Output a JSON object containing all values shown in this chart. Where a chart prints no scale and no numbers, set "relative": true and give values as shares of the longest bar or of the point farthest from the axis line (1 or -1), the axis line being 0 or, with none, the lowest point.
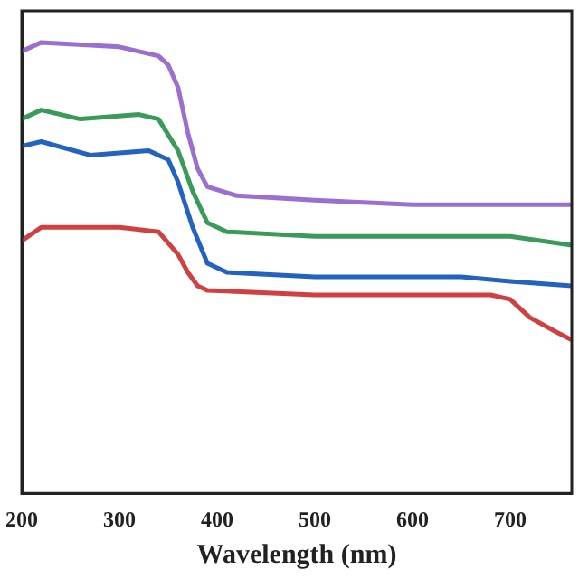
{
  "chart_data": {
    "type": "line",
    "xlabel": "Wavelength (nm)",
    "relative": true,
    "xlim": [
      200,
      763
    ],
    "xticks": [
      200,
      300,
      400,
      500,
      600,
      700
    ],
    "tick_labels": "x",
    "grid": false,
    "legend": false,
    "marker": "none",
    "line_style": "solid",
    "series": [
      {
        "color": "#9b6fd0",
        "x": [
          200,
          220,
          300,
          340,
          350,
          360,
          370,
          380,
          390,
          420,
          500,
          600,
          763
        ],
        "values": [
          0.98,
          1,
          0.99,
          0.97,
          0.95,
          0.9,
          0.8,
          0.72,
          0.68,
          0.66,
          0.65,
          0.64,
          0.64
        ]
      },
      {
        "color": "#3a9a5a",
        "x": [
          200,
          220,
          260,
          320,
          340,
          360,
          375,
          390,
          410,
          500,
          650,
          700,
          763
        ],
        "values": [
          0.83,
          0.85,
          0.83,
          0.84,
          0.83,
          0.76,
          0.67,
          0.6,
          0.58,
          0.57,
          0.57,
          0.57,
          0.55
        ]
      },
      {
        "color": "#2462c0",
        "x": [
          200,
          220,
          270,
          330,
          350,
          360,
          375,
          390,
          410,
          500,
          600,
          650,
          700,
          763
        ],
        "values": [
          0.77,
          0.78,
          0.75,
          0.76,
          0.74,
          0.69,
          0.59,
          0.51,
          0.49,
          0.48,
          0.48,
          0.48,
          0.47,
          0.46
        ]
      },
      {
        "color": "#d04040",
        "x": [
          200,
          220,
          300,
          340,
          360,
          370,
          380,
          390,
          500,
          600,
          680,
          700,
          720,
          745,
          763
        ],
        "values": [
          0.56,
          0.59,
          0.59,
          0.58,
          0.53,
          0.49,
          0.46,
          0.45,
          0.44,
          0.44,
          0.44,
          0.43,
          0.39,
          0.36,
          0.34
        ]
      }
    ]
  }
}
